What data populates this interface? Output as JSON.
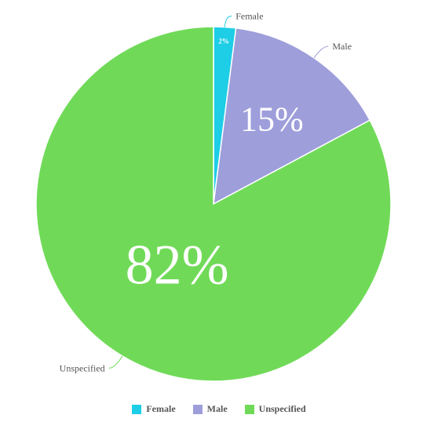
{
  "chart_data": {
    "type": "pie",
    "title": "",
    "series": [
      {
        "name": "Female",
        "value": 2,
        "color": "#1ECDE6"
      },
      {
        "name": "Male",
        "value": 15,
        "color": "#9E9EDB"
      },
      {
        "name": "Unspecified",
        "value": 82,
        "color": "#70DA58"
      }
    ],
    "data_labels": [
      "2%",
      "15%",
      "82%"
    ],
    "legend": {
      "placement": "bottom",
      "items": [
        "Female",
        "Male",
        "Unspecified"
      ]
    }
  }
}
